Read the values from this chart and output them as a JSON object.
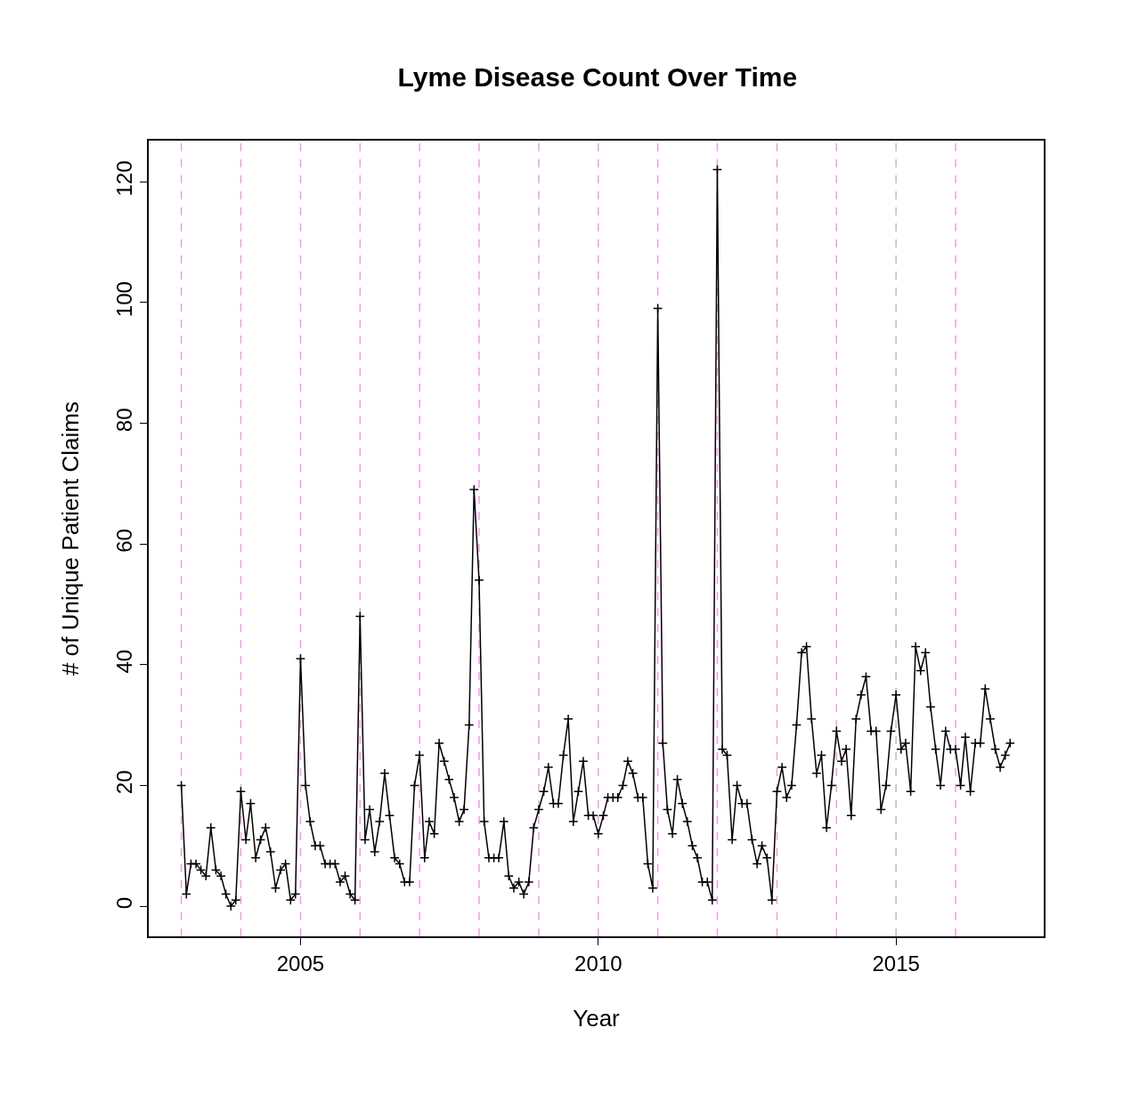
{
  "chart_data": {
    "type": "line",
    "title": "Lyme Disease Count Over Time",
    "xlabel": "Year",
    "ylabel": "# of Unique Patient Claims",
    "x": [
      "2003-01",
      "2003-02",
      "2003-03",
      "2003-04",
      "2003-05",
      "2003-06",
      "2003-07",
      "2003-08",
      "2003-09",
      "2003-10",
      "2003-11",
      "2003-12",
      "2004-01",
      "2004-02",
      "2004-03",
      "2004-04",
      "2004-05",
      "2004-06",
      "2004-07",
      "2004-08",
      "2004-09",
      "2004-10",
      "2004-11",
      "2004-12",
      "2005-01",
      "2005-02",
      "2005-03",
      "2005-04",
      "2005-05",
      "2005-06",
      "2005-07",
      "2005-08",
      "2005-09",
      "2005-10",
      "2005-11",
      "2005-12",
      "2006-01",
      "2006-02",
      "2006-03",
      "2006-04",
      "2006-05",
      "2006-06",
      "2006-07",
      "2006-08",
      "2006-09",
      "2006-10",
      "2006-11",
      "2006-12",
      "2007-01",
      "2007-02",
      "2007-03",
      "2007-04",
      "2007-05",
      "2007-06",
      "2007-07",
      "2007-08",
      "2007-09",
      "2007-10",
      "2007-11",
      "2007-12",
      "2008-01",
      "2008-02",
      "2008-03",
      "2008-04",
      "2008-05",
      "2008-06",
      "2008-07",
      "2008-08",
      "2008-09",
      "2008-10",
      "2008-11",
      "2008-12",
      "2009-01",
      "2009-02",
      "2009-03",
      "2009-04",
      "2009-05",
      "2009-06",
      "2009-07",
      "2009-08",
      "2009-09",
      "2009-10",
      "2009-11",
      "2009-12",
      "2010-01",
      "2010-02",
      "2010-03",
      "2010-04",
      "2010-05",
      "2010-06",
      "2010-07",
      "2010-08",
      "2010-09",
      "2010-10",
      "2010-11",
      "2010-12",
      "2011-01",
      "2011-02",
      "2011-03",
      "2011-04",
      "2011-05",
      "2011-06",
      "2011-07",
      "2011-08",
      "2011-09",
      "2011-10",
      "2011-11",
      "2011-12",
      "2012-01",
      "2012-02",
      "2012-03",
      "2012-04",
      "2012-05",
      "2012-06",
      "2012-07",
      "2012-08",
      "2012-09",
      "2012-10",
      "2012-11",
      "2012-12",
      "2013-01",
      "2013-02",
      "2013-03",
      "2013-04",
      "2013-05",
      "2013-06",
      "2013-07",
      "2013-08",
      "2013-09",
      "2013-10",
      "2013-11",
      "2013-12",
      "2014-01",
      "2014-02",
      "2014-03",
      "2014-04",
      "2014-05",
      "2014-06",
      "2014-07",
      "2014-08",
      "2014-09",
      "2014-10",
      "2014-11",
      "2014-12",
      "2015-01",
      "2015-02",
      "2015-03",
      "2015-04",
      "2015-05",
      "2015-06",
      "2015-07",
      "2015-08",
      "2015-09",
      "2015-10",
      "2015-11",
      "2015-12",
      "2016-01",
      "2016-02",
      "2016-03",
      "2016-04",
      "2016-05",
      "2016-06",
      "2016-07",
      "2016-08",
      "2016-09",
      "2016-10",
      "2016-11",
      "2016-12"
    ],
    "series": [
      {
        "color": "#000000",
        "values": [
          20,
          2,
          7,
          7,
          6,
          5,
          13,
          6,
          5,
          2,
          0,
          1,
          19,
          11,
          17,
          8,
          11,
          13,
          9,
          3,
          6,
          7,
          1,
          2,
          41,
          20,
          14,
          10,
          10,
          7,
          7,
          7,
          4,
          5,
          2,
          1,
          48,
          11,
          16,
          9,
          14,
          22,
          15,
          8,
          7,
          4,
          4,
          20,
          25,
          8,
          14,
          12,
          27,
          24,
          21,
          18,
          14,
          16,
          30,
          69,
          54,
          14,
          8,
          8,
          8,
          14,
          5,
          3,
          4,
          2,
          4,
          13,
          16,
          19,
          23,
          17,
          17,
          25,
          31,
          14,
          19,
          24,
          15,
          15,
          12,
          15,
          18,
          18,
          18,
          20,
          24,
          22,
          18,
          18,
          7,
          3,
          99,
          27,
          16,
          12,
          21,
          17,
          14,
          10,
          8,
          4,
          4,
          1,
          122,
          26,
          25,
          11,
          20,
          17,
          17,
          11,
          7,
          10,
          8,
          1,
          19,
          23,
          18,
          20,
          30,
          42,
          43,
          31,
          22,
          25,
          13,
          20,
          29,
          24,
          26,
          15,
          31,
          35,
          38,
          29,
          29,
          16,
          20,
          29,
          35,
          26,
          27,
          19,
          43,
          39,
          42,
          33,
          26,
          20,
          29,
          26,
          26,
          20,
          28,
          19,
          27,
          27,
          36,
          31,
          26,
          23,
          25,
          27
        ]
      }
    ],
    "marker": "cross",
    "line_style": "solid",
    "grid": false,
    "xlim": [
      "2002-06-15",
      "2017-06-25"
    ],
    "xticks": [
      {
        "value": "2005-01-01",
        "label": "2005"
      },
      {
        "value": "2010-01-01",
        "label": "2010"
      },
      {
        "value": "2015-01-01",
        "label": "2015"
      }
    ],
    "ylim": [
      -5,
      126.8
    ],
    "yticks": [
      0,
      20,
      40,
      60,
      80,
      100,
      120
    ],
    "ref_lines": [
      {
        "axis": "x",
        "value": "2003-01-01",
        "color": "#e6a0e6",
        "line_style": "dashed"
      },
      {
        "axis": "x",
        "value": "2004-01-01",
        "color": "#e6a0e6",
        "line_style": "dashed"
      },
      {
        "axis": "x",
        "value": "2005-01-01",
        "color": "#e6a0e6",
        "line_style": "dashed"
      },
      {
        "axis": "x",
        "value": "2006-01-01",
        "color": "#e6a0e6",
        "line_style": "dashed"
      },
      {
        "axis": "x",
        "value": "2007-01-01",
        "color": "#e6a0e6",
        "line_style": "dashed"
      },
      {
        "axis": "x",
        "value": "2008-01-01",
        "color": "#e6a0e6",
        "line_style": "dashed"
      },
      {
        "axis": "x",
        "value": "2009-01-01",
        "color": "#e6a0e6",
        "line_style": "dashed"
      },
      {
        "axis": "x",
        "value": "2010-01-01",
        "color": "#e6a0e6",
        "line_style": "dashed"
      },
      {
        "axis": "x",
        "value": "2011-01-01",
        "color": "#e6a0e6",
        "line_style": "dashed"
      },
      {
        "axis": "x",
        "value": "2012-01-01",
        "color": "#e6a0e6",
        "line_style": "dashed"
      },
      {
        "axis": "x",
        "value": "2013-01-01",
        "color": "#e6a0e6",
        "line_style": "dashed"
      },
      {
        "axis": "x",
        "value": "2014-01-01",
        "color": "#e6a0e6",
        "line_style": "dashed"
      },
      {
        "axis": "x",
        "value": "2015-01-01",
        "color": "#e6a0e6",
        "line_style": "dashed"
      },
      {
        "axis": "x",
        "value": "2016-01-01",
        "color": "#e6a0e6",
        "line_style": "dashed"
      }
    ]
  }
}
